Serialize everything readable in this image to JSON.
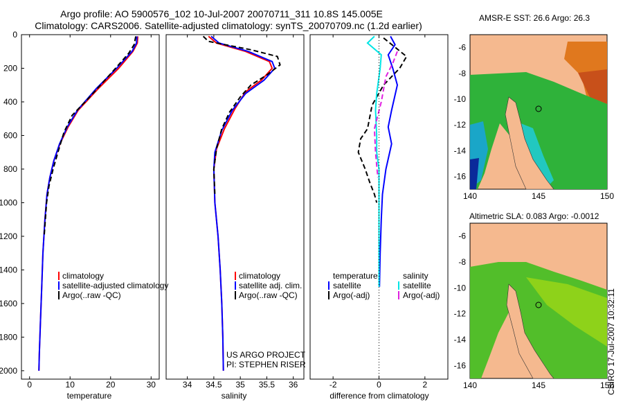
{
  "header": {
    "line1": "Argo profile: AO 5900576_102 10-Jul-2007 20070711_311 10.8S 145.005E",
    "line2": "Climatology: CARS2006. Satellite-adjusted climatology: synTS_20070709.nc (1.2d earlier)"
  },
  "stamp": "CSIRO 17-Jul-2007 10:32:11",
  "colors": {
    "climatology": "#ff0000",
    "satellite": "#0000ff",
    "argo": "#000000",
    "cyan": "#00e5e5",
    "magenta": "#e020e0",
    "land": "#f5b98f",
    "ocean": "#3cb43c"
  },
  "chart_data": [
    {
      "type": "line",
      "title": "",
      "xlabel": "temperature",
      "ylabel": "",
      "xlim": [
        -2,
        32
      ],
      "ylim": [
        2050,
        0
      ],
      "x_ticks": [
        "0",
        "10",
        "20",
        "30"
      ],
      "y_ticks": [
        "0",
        "200",
        "400",
        "600",
        "800",
        "1000",
        "1200",
        "1400",
        "1600",
        "1800",
        "2000"
      ],
      "legend": [
        "climatology",
        "satellite-adjusted climatology",
        "Argo(..raw -QC)"
      ],
      "series": [
        {
          "name": "climatology",
          "color": "#ff0000",
          "dash": "",
          "points": [
            [
              26.7,
              10
            ],
            [
              26.6,
              50
            ],
            [
              25.5,
              100
            ],
            [
              22,
              200
            ],
            [
              17,
              320
            ],
            [
              12,
              450
            ],
            [
              9.5,
              550
            ],
            [
              7.5,
              650
            ],
            [
              6,
              750
            ],
            [
              5,
              850
            ],
            [
              4.3,
              950
            ],
            [
              3.8,
              1100
            ],
            [
              3.3,
              1300
            ],
            [
              3,
              1500
            ],
            [
              2.7,
              1700
            ],
            [
              2.4,
              1900
            ],
            [
              2.3,
              2000
            ]
          ]
        },
        {
          "name": "satellite-adjusted climatology",
          "color": "#0000ff",
          "dash": "",
          "points": [
            [
              26.5,
              10
            ],
            [
              26.4,
              50
            ],
            [
              25.3,
              100
            ],
            [
              21.5,
              200
            ],
            [
              16.5,
              320
            ],
            [
              11.8,
              450
            ],
            [
              9.3,
              550
            ],
            [
              7.4,
              650
            ],
            [
              6,
              750
            ],
            [
              5,
              850
            ],
            [
              4.3,
              950
            ],
            [
              3.8,
              1100
            ],
            [
              3.3,
              1300
            ],
            [
              3,
              1500
            ],
            [
              2.7,
              1700
            ],
            [
              2.4,
              1900
            ],
            [
              2.3,
              2000
            ]
          ]
        },
        {
          "name": "Argo(..raw -QC)",
          "color": "#000000",
          "dash": "7,4",
          "points": [
            [
              26.2,
              10
            ],
            [
              25.8,
              60
            ],
            [
              24.5,
              110
            ],
            [
              20.5,
              220
            ],
            [
              14.5,
              380
            ],
            [
              10.5,
              480
            ],
            [
              8.5,
              580
            ],
            [
              7,
              700
            ],
            [
              5.8,
              800
            ],
            [
              4.8,
              900
            ],
            [
              4.2,
              1000
            ],
            [
              3.6,
              1200
            ]
          ]
        }
      ]
    },
    {
      "type": "line",
      "title": "",
      "xlabel": "salinity",
      "ylabel": "",
      "xlim": [
        33.6,
        36.2
      ],
      "ylim": [
        2050,
        0
      ],
      "x_ticks": [
        "34",
        "34.5",
        "35",
        "35.5",
        "36"
      ],
      "y_ticks": [],
      "legend": [
        "climatology",
        "satellite adj. clim.",
        "Argo(..raw -QC)"
      ],
      "annotation": [
        "US ARGO PROJECT",
        "PI: STEPHEN RISER"
      ],
      "series": [
        {
          "name": "climatology",
          "color": "#ff0000",
          "dash": "",
          "points": [
            [
              34.4,
              10
            ],
            [
              34.55,
              50
            ],
            [
              35.1,
              100
            ],
            [
              35.55,
              160
            ],
            [
              35.6,
              200
            ],
            [
              35.4,
              270
            ],
            [
              35.1,
              340
            ],
            [
              34.9,
              440
            ],
            [
              34.7,
              560
            ],
            [
              34.55,
              680
            ],
            [
              34.5,
              800
            ],
            [
              34.52,
              1000
            ],
            [
              34.58,
              1200
            ],
            [
              34.62,
              1400
            ],
            [
              34.65,
              1600
            ],
            [
              34.67,
              1800
            ],
            [
              34.68,
              2000
            ]
          ]
        },
        {
          "name": "satellite adj. clim.",
          "color": "#0000ff",
          "dash": "",
          "points": [
            [
              34.45,
              10
            ],
            [
              34.6,
              50
            ],
            [
              35.15,
              100
            ],
            [
              35.6,
              160
            ],
            [
              35.65,
              200
            ],
            [
              35.45,
              270
            ],
            [
              35.1,
              350
            ],
            [
              34.85,
              450
            ],
            [
              34.65,
              570
            ],
            [
              34.52,
              700
            ],
            [
              34.5,
              800
            ],
            [
              34.52,
              1000
            ],
            [
              34.58,
              1200
            ],
            [
              34.62,
              1400
            ],
            [
              34.65,
              1600
            ],
            [
              34.67,
              1800
            ],
            [
              34.68,
              2000
            ]
          ]
        },
        {
          "name": "Argo(..raw -QC)",
          "color": "#000000",
          "dash": "7,4",
          "points": [
            [
              34.3,
              10
            ],
            [
              34.4,
              40
            ],
            [
              35.2,
              90
            ],
            [
              35.7,
              130
            ],
            [
              35.75,
              180
            ],
            [
              35.5,
              240
            ],
            [
              35.2,
              300
            ],
            [
              35,
              370
            ],
            [
              34.8,
              460
            ],
            [
              34.65,
              560
            ],
            [
              34.55,
              680
            ],
            [
              34.5,
              800
            ],
            [
              34.52,
              950
            ]
          ]
        }
      ]
    },
    {
      "type": "line",
      "title": "",
      "xlabel": "difference from climatology",
      "ylabel": "",
      "xlim": [
        -3,
        3
      ],
      "ylim": [
        2050,
        0
      ],
      "x_ticks": [
        "-2",
        "0",
        "2"
      ],
      "y_ticks": [],
      "legend_temperature": [
        "temperature",
        "satellite",
        "Argo(-adj)"
      ],
      "legend_salinity": [
        "salinity",
        "satellite",
        "Argo(-adj)"
      ],
      "series": [
        {
          "name": "temperature satellite",
          "color": "#0000ff",
          "dash": "",
          "points": [
            [
              0.5,
              10
            ],
            [
              0.7,
              60
            ],
            [
              0.4,
              120
            ],
            [
              0.6,
              200
            ],
            [
              0.8,
              300
            ],
            [
              0.55,
              450
            ],
            [
              0.4,
              550
            ],
            [
              0.55,
              650
            ],
            [
              0.3,
              800
            ],
            [
              0.15,
              950
            ],
            [
              0.1,
              1100
            ],
            [
              0.05,
              1300
            ],
            [
              0.02,
              1500
            ]
          ]
        },
        {
          "name": "temperature Argo(-adj)",
          "color": "#000000",
          "dash": "7,4",
          "points": [
            [
              0.2,
              20
            ],
            [
              1.2,
              130
            ],
            [
              0.9,
              200
            ],
            [
              0.2,
              300
            ],
            [
              -0.3,
              420
            ],
            [
              -0.5,
              560
            ],
            [
              -0.8,
              620
            ],
            [
              -0.9,
              700
            ],
            [
              -0.6,
              800
            ],
            [
              -0.4,
              880
            ],
            [
              -0.2,
              950
            ],
            [
              -0.1,
              1000
            ]
          ]
        },
        {
          "name": "salinity satellite",
          "color": "#00e5e5",
          "dash": "",
          "points": [
            [
              -0.2,
              10
            ],
            [
              -0.5,
              50
            ],
            [
              0.1,
              120
            ],
            [
              0.05,
              200
            ],
            [
              -0.1,
              350
            ],
            [
              -0.15,
              450
            ],
            [
              -0.1,
              600
            ],
            [
              -0.1,
              700
            ],
            [
              0,
              800
            ],
            [
              0,
              1000
            ],
            [
              0,
              1200
            ],
            [
              0,
              1400
            ],
            [
              0,
              1500
            ]
          ]
        },
        {
          "name": "salinity Argo(-adj)",
          "color": "#e020e0",
          "dash": "7,4",
          "points": [
            [
              0.8,
              100
            ],
            [
              0.6,
              170
            ],
            [
              0.3,
              250
            ],
            [
              0.1,
              400
            ],
            [
              -0.2,
              560
            ],
            [
              -0.15,
              700
            ],
            [
              -0.05,
              850
            ]
          ]
        }
      ]
    }
  ],
  "maps": [
    {
      "title": "AMSR-E SST: 26.6 Argo: 26.3",
      "x_ticks": [
        "140",
        "145",
        "150"
      ],
      "y_ticks": [
        "-6",
        "-8",
        "-10",
        "-12",
        "-14",
        "-16"
      ]
    },
    {
      "title": "Altimetric SLA: 0.083 Argo: -0.0012",
      "x_ticks": [
        "140",
        "145",
        "150"
      ],
      "y_ticks": [
        "-6",
        "-8",
        "-10",
        "-12",
        "-14",
        "-16"
      ]
    }
  ]
}
